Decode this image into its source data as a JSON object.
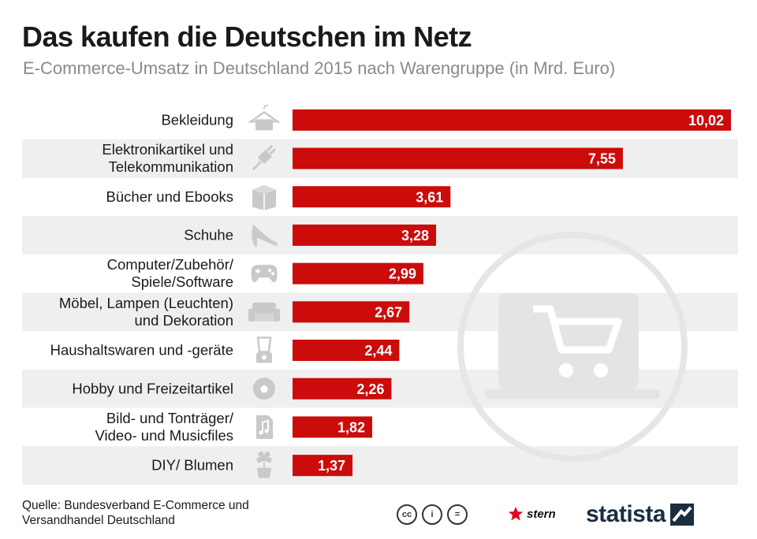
{
  "header": {
    "title": "Das kaufen die Deutschen im Netz",
    "subtitle": "E-Commerce-Umsatz in Deutschland 2015 nach Warengruppe (in Mrd. Euro)"
  },
  "chart_data": {
    "type": "bar",
    "orientation": "horizontal",
    "categories": [
      [
        "Bekleidung"
      ],
      [
        "Elektronikartikel und",
        "Telekommunikation"
      ],
      [
        "Bücher und Ebooks"
      ],
      [
        "Schuhe"
      ],
      [
        "Computer/Zubehör/",
        "Spiele/Software"
      ],
      [
        "Möbel, Lampen (Leuchten)",
        "und Dekoration"
      ],
      [
        "Haushaltswaren und -geräte"
      ],
      [
        "Hobby und Freizeitartikel"
      ],
      [
        "Bild- und Tonträger/",
        "Video- und Musicfiles"
      ],
      [
        "DIY/ Blumen"
      ]
    ],
    "values": [
      10.02,
      7.55,
      3.61,
      3.28,
      2.99,
      2.67,
      2.44,
      2.26,
      1.82,
      1.37
    ],
    "value_labels": [
      "10,02",
      "7,55",
      "3,61",
      "3,28",
      "2,99",
      "2,67",
      "2,44",
      "2,26",
      "1,82",
      "1,37"
    ],
    "icons": [
      "hanger-icon",
      "plug-icon",
      "book-icon",
      "high-heel-icon",
      "gamepad-icon",
      "sofa-icon",
      "blender-icon",
      "ball-icon",
      "music-file-icon",
      "flower-pot-icon"
    ],
    "xlim": [
      0,
      10.02
    ],
    "grid": false,
    "colors": {
      "bar": "#cc0b0b",
      "stripe": "#efefef",
      "icon": "#c9c9c9",
      "label": "#1a1a1a",
      "value_text": "#ffffff"
    }
  },
  "footer": {
    "source_line1": "Quelle: Bundesverband E-Commerce und",
    "source_line2": "Versandhandel Deutschland",
    "cc_icons": [
      "cc-icon",
      "by-icon",
      "nd-icon"
    ],
    "cc_labels": [
      "cc",
      "i",
      "="
    ],
    "stern_label": "stern",
    "statista_label": "statista"
  }
}
